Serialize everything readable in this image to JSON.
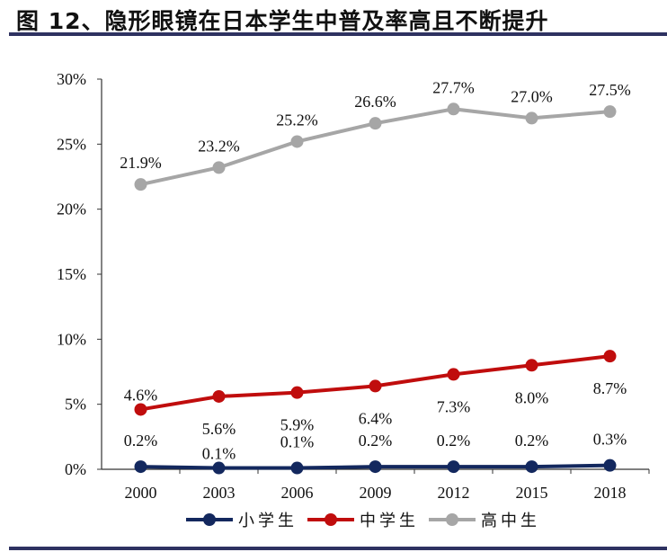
{
  "title": "图 12、隐形眼镜在日本学生中普及率高且不断提升",
  "chart_data": {
    "type": "line",
    "title": "图 12、隐形眼镜在日本学生中普及率高且不断提升",
    "xlabel": "",
    "ylabel": "",
    "categories": [
      "2000",
      "2003",
      "2006",
      "2009",
      "2012",
      "2015",
      "2018"
    ],
    "ylim": [
      0,
      30
    ],
    "yticks": [
      0,
      5,
      10,
      15,
      20,
      25,
      30
    ],
    "ytick_labels": [
      "0%",
      "5%",
      "10%",
      "15%",
      "20%",
      "25%",
      "30%"
    ],
    "grid": false,
    "legend_position": "bottom",
    "series": [
      {
        "name": "小学生",
        "color": "#13285e",
        "values": [
          0.2,
          0.1,
          0.1,
          0.2,
          0.2,
          0.2,
          0.3
        ],
        "labels": [
          "0.2%",
          "0.1%",
          "0.1%",
          "0.2%",
          "0.2%",
          "0.2%",
          "0.3%"
        ]
      },
      {
        "name": "中学生",
        "color": "#c00d0d",
        "values": [
          4.6,
          5.6,
          5.9,
          6.4,
          7.3,
          8.0,
          8.7
        ],
        "labels": [
          "4.6%",
          "5.6%",
          "5.9%",
          "6.4%",
          "7.3%",
          "8.0%",
          "8.7%"
        ]
      },
      {
        "name": "高中生",
        "color": "#a6a6a6",
        "values": [
          21.9,
          23.2,
          25.2,
          26.6,
          27.7,
          27.0,
          27.5
        ],
        "labels": [
          "21.9%",
          "23.2%",
          "25.2%",
          "26.6%",
          "27.7%",
          "27.0%",
          "27.5%"
        ]
      }
    ]
  }
}
